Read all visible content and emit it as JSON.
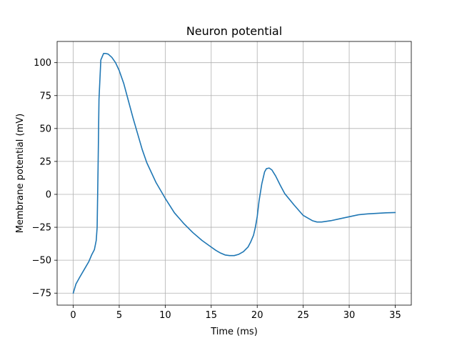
{
  "chart_data": {
    "type": "line",
    "title": "Neuron potential",
    "xlabel": "Time (ms)",
    "ylabel": "Membrane potential (mV)",
    "xlim": [
      -1.75,
      36.75
    ],
    "ylim": [
      -84.1,
      116.1
    ],
    "xticks": [
      0,
      5,
      10,
      15,
      20,
      25,
      30,
      35
    ],
    "yticks": [
      -75,
      -50,
      -25,
      0,
      25,
      50,
      75,
      100
    ],
    "grid": true,
    "series": [
      {
        "color": "#1f77b4",
        "x": [
          0,
          0.3,
          0.7,
          1.2,
          1.7,
          2.0,
          2.3,
          2.5,
          2.6,
          2.7,
          2.8,
          3.0,
          3.3,
          3.5,
          3.8,
          4.2,
          4.6,
          5.0,
          5.5,
          6.0,
          6.5,
          7.0,
          7.5,
          8.0,
          9.0,
          10.0,
          11.0,
          12.0,
          13.0,
          14.0,
          15.0,
          15.5,
          16.0,
          16.5,
          17.0,
          17.5,
          18.0,
          18.5,
          19.0,
          19.3,
          19.6,
          19.8,
          20.0,
          20.2,
          20.5,
          20.8,
          21.0,
          21.3,
          21.6,
          22.0,
          22.5,
          23.0,
          24.0,
          25.0,
          26.0,
          26.5,
          27.0,
          28.0,
          29.0,
          30.0,
          31.0,
          32.0,
          33.0,
          34.0,
          35.0
        ],
        "y": [
          -75,
          -68,
          -63,
          -57,
          -51,
          -46,
          -42,
          -35,
          -25,
          20,
          72,
          102,
          107,
          107,
          106.5,
          104,
          100,
          94,
          84,
          71,
          58,
          46,
          34,
          24,
          9,
          -3,
          -14,
          -22,
          -29,
          -35,
          -40,
          -42.5,
          -44.5,
          -46,
          -46.5,
          -46.5,
          -45.5,
          -43.5,
          -40,
          -36,
          -31,
          -25,
          -17,
          -5,
          8,
          17,
          19.5,
          20,
          18.5,
          14,
          7,
          0.5,
          -8,
          -16,
          -20,
          -21,
          -21,
          -20,
          -18.5,
          -17,
          -15.5,
          -14.8,
          -14.4,
          -14,
          -13.8
        ]
      }
    ]
  }
}
